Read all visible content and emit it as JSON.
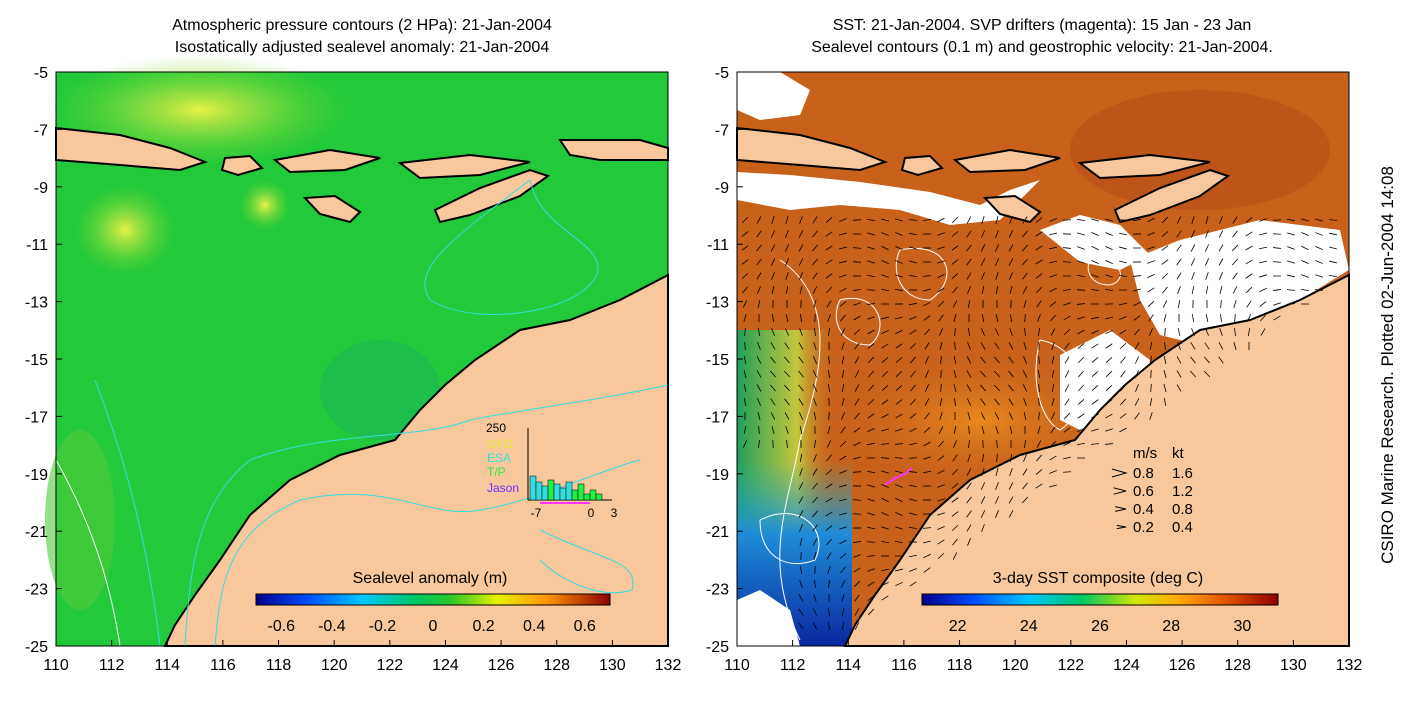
{
  "left_panel": {
    "title_line1": "Atmospheric pressure contours (2 HPa): 21-Jan-2004",
    "title_line2": "Isostatically adjusted sealevel anomaly: 21-Jan-2004",
    "colorbar_label": "Sealevel anomaly (m)",
    "colorbar_ticks": [
      "-0.6",
      "-0.4",
      "-0.2",
      "0",
      "0.2",
      "0.4",
      "0.6"
    ],
    "inset": {
      "ymax_label": "250",
      "legend": [
        "GFO",
        "ESA",
        "T/P",
        "Jason"
      ],
      "x_ticks": [
        "-7",
        "0",
        "3"
      ]
    }
  },
  "right_panel": {
    "title_line1": "SST: 21-Jan-2004. SVP drifters (magenta): 15 Jan - 23 Jan",
    "title_line2": "Sealevel contours (0.1 m) and geostrophic velocity: 21-Jan-2004.",
    "colorbar_label": "3-day SST composite (deg C)",
    "colorbar_ticks": [
      "22",
      "24",
      "26",
      "28",
      "30"
    ],
    "velocity_key": {
      "header_ms": "m/s",
      "header_kt": "kt",
      "rows": [
        {
          "ms": "0.8",
          "kt": "1.6"
        },
        {
          "ms": "0.6",
          "kt": "1.2"
        },
        {
          "ms": "0.4",
          "kt": "0.8"
        },
        {
          "ms": "0.2",
          "kt": "0.4"
        }
      ]
    }
  },
  "axes": {
    "lat_ticks": [
      "-5",
      "-7",
      "-9",
      "-11",
      "-13",
      "-15",
      "-17",
      "-19",
      "-21",
      "-23",
      "-25"
    ],
    "lon_ticks": [
      "110",
      "112",
      "114",
      "116",
      "118",
      "120",
      "122",
      "124",
      "126",
      "128",
      "130",
      "132"
    ]
  },
  "credit": "CSIRO Marine Research. Plotted 02-Jun-2004 14:08",
  "colors": {
    "land": "#f8c89c",
    "sla_ocean": "#22c93a",
    "sst_ocean": "#c8621a",
    "cloud": "#ffffff",
    "contour_cyan": "#33dddd",
    "drifter_magenta": "#ff33ff"
  }
}
